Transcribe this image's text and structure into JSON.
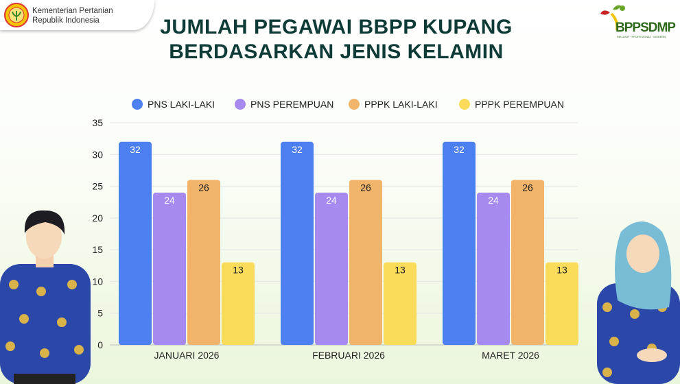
{
  "header": {
    "org_line1": "Kementerian Pertanian",
    "org_line2": "Republik Indonesia",
    "logo_right": "BPPSDMP",
    "logo_right_tagline": "INKLUSIF · PROFESIONAL · MODERN"
  },
  "title_line1": "JUMLAH PEGAWAI BBPP KUPANG",
  "title_line2": "BERDASARKAN JENIS KELAMIN",
  "chart_data": {
    "type": "bar",
    "title": "JUMLAH PEGAWAI BBPP KUPANG BERDASARKAN JENIS KELAMIN",
    "categories": [
      "JANUARI 2026",
      "FEBRUARI 2026",
      "MARET 2026"
    ],
    "series": [
      {
        "name": "PNS LAKI-LAKI",
        "color": "#4c7ff0",
        "values": [
          32,
          32,
          32
        ]
      },
      {
        "name": "PNS PEREMPUAN",
        "color": "#a78af0",
        "values": [
          24,
          24,
          24
        ]
      },
      {
        "name": "PPPK LAKI-LAKI",
        "color": "#f0b46a",
        "values": [
          26,
          26,
          26
        ]
      },
      {
        "name": "PPPK PEREMPUAN",
        "color": "#fbdc5a",
        "values": [
          13,
          13,
          13
        ]
      }
    ],
    "ylim": [
      0,
      35
    ],
    "yticks": [
      0,
      5,
      10,
      15,
      20,
      25,
      30,
      35
    ],
    "grid": true,
    "legend": "top"
  }
}
